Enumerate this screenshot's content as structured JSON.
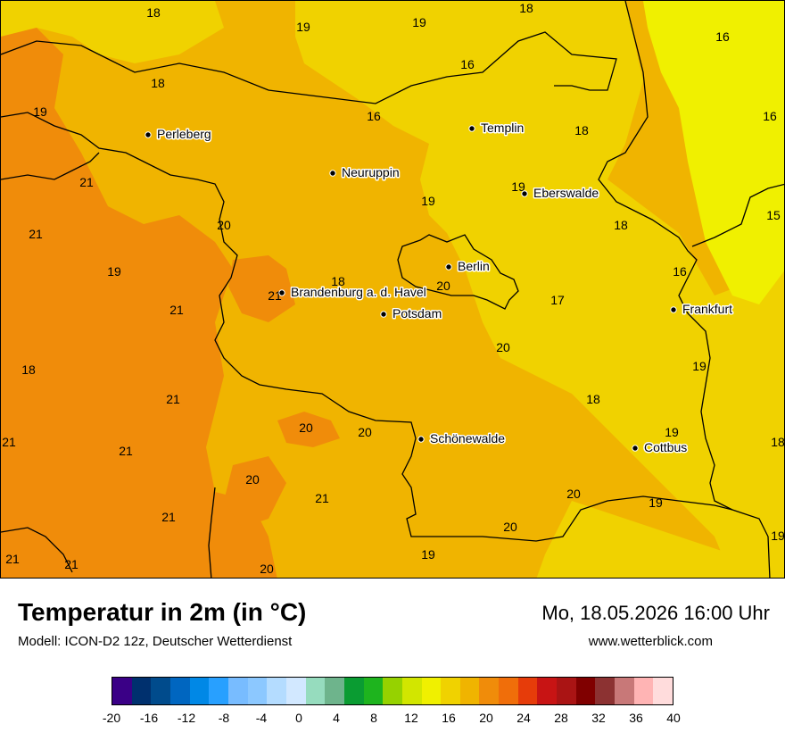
{
  "map": {
    "cities": [
      {
        "name": "Perleberg"
      },
      {
        "name": "Templin"
      },
      {
        "name": "Neuruppin"
      },
      {
        "name": "Eberswalde"
      },
      {
        "name": "Berlin"
      },
      {
        "name": "Brandenburg a. d. Havel"
      },
      {
        "name": "Potsdam"
      },
      {
        "name": "Frankfurt"
      },
      {
        "name": "Schönewalde"
      },
      {
        "name": "Cottbus"
      }
    ],
    "temperature_labels": [
      "18",
      "19",
      "19",
      "18",
      "16",
      "18",
      "19",
      "16",
      "16",
      "18",
      "16",
      "19",
      "21",
      "21",
      "20",
      "19",
      "19",
      "18",
      "18",
      "15",
      "16",
      "21",
      "18",
      "20",
      "17",
      "21",
      "20",
      "18",
      "19",
      "21",
      "20",
      "20",
      "19",
      "18",
      "21",
      "21",
      "20",
      "21",
      "20",
      "19",
      "20",
      "19",
      "21",
      "21",
      "21",
      "20",
      "19"
    ]
  },
  "footer": {
    "title": "Temperatur in 2m (in °C)",
    "model": "Modell: ICON-D2 12z, Deutscher Wetterdienst",
    "datetime": "Mo, 18.05.2026 16:00 Uhr",
    "website": "www.wetterblick.com"
  },
  "legend": {
    "colors": [
      "#3a0086",
      "#00306e",
      "#004b8c",
      "#0066c0",
      "#0088e6",
      "#28a0ff",
      "#78bcff",
      "#8cc8ff",
      "#b4dcff",
      "#d2e8ff",
      "#96dcbe",
      "#6eb48c",
      "#0a9c32",
      "#1eb41e",
      "#96d200",
      "#d2e600",
      "#f0f000",
      "#f0d200",
      "#f0b400",
      "#f08c0a",
      "#f06e0a",
      "#e63c0a",
      "#c81414",
      "#aa1414",
      "#800000",
      "#8c3232",
      "#c87878",
      "#ffb4b4",
      "#ffdcdc"
    ],
    "ticks": [
      "-20",
      "-16",
      "-12",
      "-8",
      "-4",
      "0",
      "4",
      "8",
      "12",
      "16",
      "20",
      "24",
      "28",
      "32",
      "36",
      "40"
    ]
  },
  "colors": {
    "temp_15": "#f0f000",
    "temp_16_18": "#f0d200",
    "temp_19_20": "#f0b400",
    "temp_21": "#f08c0a",
    "border": "#000000"
  }
}
